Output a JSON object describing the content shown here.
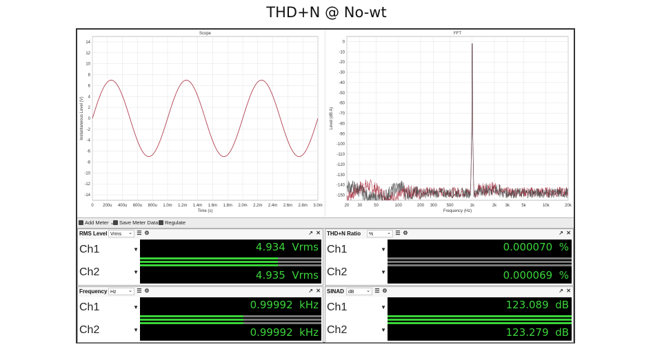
{
  "page_title": "THD+N @ No-wt",
  "scope": {
    "title": "Scope",
    "ylabel": "Instantaneous Level (V)",
    "xlabel": "Time (s)",
    "yticks": [
      "14",
      "12",
      "10",
      "8",
      "6",
      "4",
      "2",
      "0",
      "-2",
      "-4",
      "-6",
      "-8",
      "-10",
      "-12",
      "-14"
    ],
    "xticks": [
      "0",
      "200u",
      "400u",
      "600u",
      "800u",
      "1.0m",
      "1.2m",
      "1.4m",
      "1.6m",
      "1.8m",
      "2.0m",
      "2.2m",
      "2.4m",
      "2.6m",
      "2.8m",
      "3.0m"
    ]
  },
  "fft": {
    "title": "FFT",
    "ylabel": "Level (dB A)",
    "xlabel": "Frequency (Hz)",
    "yticks": [
      "0",
      "-10",
      "-20",
      "-30",
      "-40",
      "-50",
      "-60",
      "-70",
      "-80",
      "-90",
      "-100",
      "-110",
      "-120",
      "-130",
      "-140",
      "-150"
    ],
    "xticks": [
      "20",
      "30",
      "50",
      "100",
      "200",
      "300",
      "500",
      "1k",
      "2k",
      "3k",
      "5k",
      "10k",
      "20k"
    ]
  },
  "chart_data": [
    {
      "type": "line",
      "title": "Scope",
      "xlabel": "Time (s)",
      "ylabel": "Instantaneous Level (V)",
      "xlim": [
        0,
        0.003
      ],
      "ylim": [
        -15,
        15
      ],
      "grid": true,
      "series": [
        {
          "amplitude": 7.0,
          "frequency_hz": 1000,
          "phase_deg": 0,
          "color": "#b04050"
        }
      ]
    },
    {
      "type": "line",
      "title": "FFT",
      "xlabel": "Frequency (Hz)",
      "ylabel": "Level (dB A)",
      "xscale": "log",
      "xlim": [
        20,
        20000
      ],
      "ylim": [
        -155,
        5
      ],
      "grid": true,
      "series": [
        {
          "color": "#b04050",
          "peak_frequency_hz": 1000,
          "peak_level_db": -2,
          "noise_floor_db": -147
        },
        {
          "color": "#404040",
          "peak_frequency_hz": 1000,
          "peak_level_db": -2,
          "noise_floor_db": -148
        }
      ]
    }
  ],
  "toolbar": {
    "add_meter": "Add Meter",
    "save_meter": "Save Meter Data",
    "regulate": "Regulate"
  },
  "meters": {
    "rms": {
      "label": "RMS Level",
      "unit": "Vrms",
      "ch1": {
        "name": "Ch1",
        "value": "4.934",
        "unit": "Vrms",
        "fill": 0.76
      },
      "ch2": {
        "name": "Ch2",
        "value": "4.935",
        "unit": "Vrms",
        "fill": 0.76
      }
    },
    "thdn": {
      "label": "THD+N Ratio",
      "unit": "%",
      "ch1": {
        "name": "Ch1",
        "value": "0.000070",
        "unit": "%",
        "fill": 0.0
      },
      "ch2": {
        "name": "Ch2",
        "value": "0.000069",
        "unit": "%",
        "fill": 0.0
      }
    },
    "freq": {
      "label": "Frequency",
      "unit": "Hz",
      "ch1": {
        "name": "Ch1",
        "value": "0.99992",
        "unit": "kHz",
        "fill": 0.57
      },
      "ch2": {
        "name": "Ch2",
        "value": "0.99992",
        "unit": "kHz",
        "fill": 0.57
      }
    },
    "sinad": {
      "label": "SINAD",
      "unit": "dB",
      "ch1": {
        "name": "Ch1",
        "value": "123.089",
        "unit": "dB",
        "fill": 1.0
      },
      "ch2": {
        "name": "Ch2",
        "value": "123.279",
        "unit": "dB",
        "fill": 1.0
      }
    }
  },
  "colors": {
    "meter_green": "#3ad43a",
    "trace_red": "#b04050",
    "trace_dark": "#404040"
  }
}
